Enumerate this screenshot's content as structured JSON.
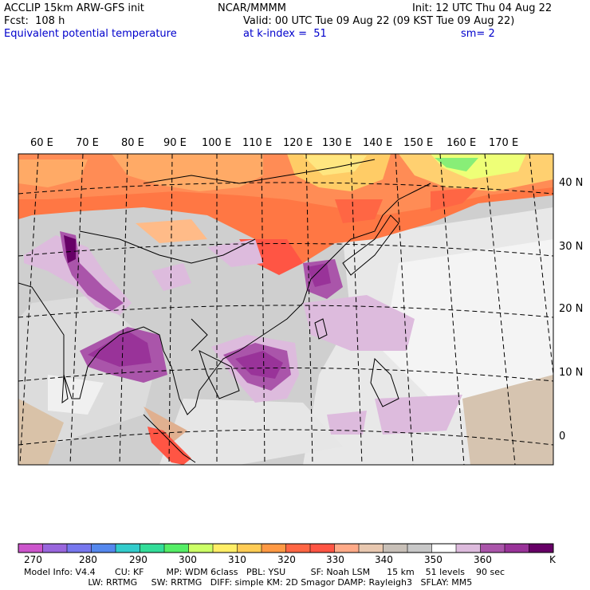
{
  "header": {
    "model_line": "ACCLIP 15km ARW-GFS init",
    "forecast": "Fcst:  108 h",
    "field": "Equivalent potential temperature",
    "center": "NCAR/MMMM",
    "init": "Init: 12 UTC Thu 04 Aug 22",
    "valid": "Valid: 00 UTC Tue 09 Aug 22 (09 KST Tue 09 Aug 22)",
    "level": "at k-index =  51",
    "smooth": "sm= 2"
  },
  "map": {
    "lon_labels": [
      "60 E",
      "70 E",
      "80 E",
      "90 E",
      "100 E",
      "110 E",
      "120 E",
      "130 E",
      "140 E",
      "150 E",
      "160 E",
      "170 E"
    ],
    "lat_labels": [
      "40 N",
      "30 N",
      "20 N",
      "10 N",
      "0"
    ]
  },
  "colorbar": {
    "colors": [
      "#cc55cc",
      "#9966dd",
      "#7777ee",
      "#5588ee",
      "#33cccc",
      "#33dd99",
      "#55ee66",
      "#ccff66",
      "#ffee66",
      "#ffcc55",
      "#ff9944",
      "#ff6644",
      "#ff5544",
      "#ffaa88",
      "#e8c8b0",
      "#c8c0b8",
      "#c8c8c8",
      "#ffffff",
      "#ddbbdd",
      "#aa55aa",
      "#993399",
      "#660066"
    ],
    "labels": [
      "270",
      "280",
      "290",
      "300",
      "310",
      "320",
      "330",
      "340",
      "350",
      "360"
    ],
    "unit": "K"
  },
  "footer": {
    "line1": "Model Info: V4.4       CU: KF        MP: WDM 6class   PBL: YSU         SF: Noah LSM      15 km    51 levels    90 sec",
    "line2": "                       LW: RRTMG     SW: RRTMG   DIFF: simple KM: 2D Smagor DAMP: Rayleigh3   SFLAY: MM5"
  }
}
